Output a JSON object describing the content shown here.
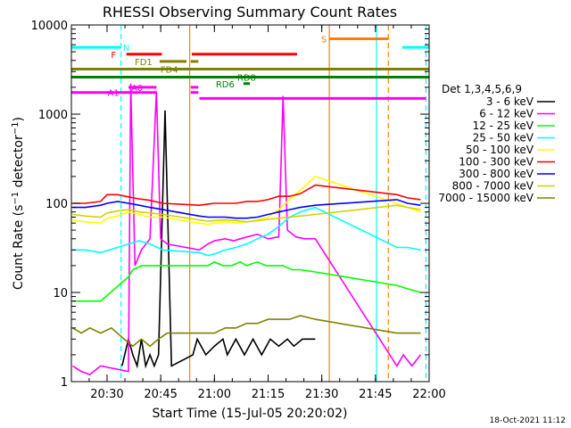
{
  "chart_data": {
    "type": "line",
    "title": "RHESSI Observing Summary Count Rates",
    "xlabel": "Start Time (15-Jul-05 20:20:02)",
    "ylabel": "Count Rate (s⁻¹ detector⁻¹)",
    "ylabel_main": "Count Rate (s",
    "ylabel_mid": " detector",
    "ylabel_end": ")",
    "ylabel_sup": "−1",
    "yscale": "log",
    "xlim": [
      20.3339,
      22.0
    ],
    "ylim": [
      1,
      10000
    ],
    "x_ticks": [
      {
        "x": 20.5,
        "label": "20:30"
      },
      {
        "x": 20.75,
        "label": "20:45"
      },
      {
        "x": 21.0,
        "label": "21:00"
      },
      {
        "x": 21.25,
        "label": "21:15"
      },
      {
        "x": 21.5,
        "label": "21:30"
      },
      {
        "x": 21.75,
        "label": "21:45"
      },
      {
        "x": 22.0,
        "label": "22:00"
      }
    ],
    "y_ticks": [
      {
        "y": 1,
        "label": "1"
      },
      {
        "y": 10,
        "label": "10"
      },
      {
        "y": 100,
        "label": "100"
      },
      {
        "y": 1000,
        "label": "1000"
      },
      {
        "y": 10000,
        "label": "10000"
      }
    ],
    "legend_title": "Det 1,3,4,5,6,9",
    "legend_position": "right",
    "footer_date": "18-Oct-2021 11:12",
    "series": [
      {
        "name": "3 - 6 keV",
        "color": "#000000",
        "points": [
          [
            20.57,
            1.5
          ],
          [
            20.6,
            3
          ],
          [
            20.62,
            2
          ],
          [
            20.64,
            1.5
          ],
          [
            20.66,
            3
          ],
          [
            20.68,
            1.5
          ],
          [
            20.7,
            2
          ],
          [
            20.72,
            1.5
          ],
          [
            20.74,
            2
          ],
          [
            20.77,
            1100
          ],
          [
            20.8,
            1.5
          ],
          [
            20.9,
            2
          ],
          [
            20.92,
            3
          ],
          [
            20.96,
            2
          ],
          [
            21.0,
            2.5
          ],
          [
            21.04,
            3
          ],
          [
            21.06,
            2
          ],
          [
            21.1,
            3
          ],
          [
            21.14,
            2
          ],
          [
            21.18,
            3
          ],
          [
            21.22,
            2
          ],
          [
            21.26,
            3
          ],
          [
            21.3,
            2.5
          ],
          [
            21.34,
            3
          ],
          [
            21.37,
            2.5
          ],
          [
            21.41,
            3
          ],
          [
            21.47,
            3
          ]
        ]
      },
      {
        "name": "6 - 12 keV",
        "color": "#ff00ff",
        "points": [
          [
            20.34,
            1.5
          ],
          [
            20.38,
            1.3
          ],
          [
            20.42,
            1.2
          ],
          [
            20.47,
            1.5
          ],
          [
            20.6,
            1.3
          ],
          [
            20.61,
            2200
          ],
          [
            20.63,
            20
          ],
          [
            20.66,
            30
          ],
          [
            20.7,
            40
          ],
          [
            20.73,
            1800
          ],
          [
            20.75,
            40
          ],
          [
            20.78,
            35
          ],
          [
            20.93,
            30
          ],
          [
            20.97,
            35
          ],
          [
            21.0,
            38
          ],
          [
            21.05,
            40
          ],
          [
            21.09,
            38
          ],
          [
            21.12,
            40
          ],
          [
            21.2,
            45
          ],
          [
            21.25,
            40
          ],
          [
            21.3,
            42
          ],
          [
            21.32,
            1600
          ],
          [
            21.34,
            50
          ],
          [
            21.38,
            42
          ],
          [
            21.42,
            40
          ],
          [
            21.47,
            40
          ],
          [
            21.85,
            1.5
          ],
          [
            21.88,
            2
          ],
          [
            21.92,
            1.5
          ],
          [
            21.96,
            2
          ]
        ]
      },
      {
        "name": "12 - 25 keV",
        "color": "#00ff00",
        "points": [
          [
            20.34,
            8
          ],
          [
            20.4,
            8
          ],
          [
            20.47,
            8
          ],
          [
            20.6,
            15
          ],
          [
            20.62,
            18
          ],
          [
            20.66,
            20
          ],
          [
            20.7,
            20
          ],
          [
            20.74,
            20
          ],
          [
            20.76,
            20
          ],
          [
            20.93,
            20
          ],
          [
            20.97,
            20
          ],
          [
            21.0,
            22
          ],
          [
            21.04,
            20
          ],
          [
            21.08,
            20
          ],
          [
            21.12,
            22
          ],
          [
            21.15,
            20
          ],
          [
            21.2,
            22
          ],
          [
            21.24,
            20
          ],
          [
            21.28,
            20
          ],
          [
            21.32,
            20
          ],
          [
            21.36,
            18
          ],
          [
            21.4,
            18
          ],
          [
            21.47,
            17
          ],
          [
            21.85,
            12
          ],
          [
            21.9,
            11
          ],
          [
            21.96,
            10
          ]
        ]
      },
      {
        "name": "25 - 50 keV",
        "color": "#00ffff",
        "points": [
          [
            20.34,
            30
          ],
          [
            20.4,
            30
          ],
          [
            20.47,
            28
          ],
          [
            20.55,
            32
          ],
          [
            20.6,
            35
          ],
          [
            20.65,
            38
          ],
          [
            20.7,
            35
          ],
          [
            20.76,
            30
          ],
          [
            20.93,
            28
          ],
          [
            20.97,
            26
          ],
          [
            21.0,
            27
          ],
          [
            21.05,
            30
          ],
          [
            21.1,
            32
          ],
          [
            21.15,
            35
          ],
          [
            21.2,
            40
          ],
          [
            21.25,
            45
          ],
          [
            21.3,
            55
          ],
          [
            21.35,
            70
          ],
          [
            21.4,
            80
          ],
          [
            21.47,
            90
          ],
          [
            21.85,
            32
          ],
          [
            21.9,
            32
          ],
          [
            21.96,
            30
          ]
        ]
      },
      {
        "name": "50 - 100 keV",
        "color": "#ffff00",
        "points": [
          [
            20.34,
            65
          ],
          [
            20.4,
            62
          ],
          [
            20.47,
            60
          ],
          [
            20.5,
            68
          ],
          [
            20.55,
            72
          ],
          [
            20.6,
            80
          ],
          [
            20.65,
            75
          ],
          [
            20.7,
            70
          ],
          [
            20.76,
            70
          ],
          [
            20.93,
            60
          ],
          [
            20.97,
            58
          ],
          [
            21.0,
            60
          ],
          [
            21.05,
            62
          ],
          [
            21.1,
            60
          ],
          [
            21.15,
            62
          ],
          [
            21.2,
            65
          ],
          [
            21.25,
            70
          ],
          [
            21.3,
            85
          ],
          [
            21.35,
            110
          ],
          [
            21.4,
            140
          ],
          [
            21.47,
            200
          ],
          [
            21.85,
            100
          ],
          [
            21.9,
            90
          ],
          [
            21.96,
            80
          ]
        ]
      },
      {
        "name": "100 - 300 keV",
        "color": "#ff0000",
        "points": [
          [
            20.34,
            100
          ],
          [
            20.4,
            100
          ],
          [
            20.47,
            105
          ],
          [
            20.5,
            125
          ],
          [
            20.55,
            125
          ],
          [
            20.6,
            118
          ],
          [
            20.65,
            112
          ],
          [
            20.7,
            108
          ],
          [
            20.76,
            100
          ],
          [
            20.93,
            95
          ],
          [
            20.97,
            98
          ],
          [
            21.0,
            100
          ],
          [
            21.05,
            100
          ],
          [
            21.1,
            100
          ],
          [
            21.15,
            105
          ],
          [
            21.2,
            105
          ],
          [
            21.25,
            110
          ],
          [
            21.3,
            120
          ],
          [
            21.35,
            120
          ],
          [
            21.4,
            128
          ],
          [
            21.47,
            160
          ],
          [
            21.85,
            125
          ],
          [
            21.9,
            115
          ],
          [
            21.96,
            110
          ]
        ]
      },
      {
        "name": "300 - 800 keV",
        "color": "#0000ff",
        "points": [
          [
            20.34,
            90
          ],
          [
            20.4,
            90
          ],
          [
            20.47,
            95
          ],
          [
            20.5,
            100
          ],
          [
            20.55,
            105
          ],
          [
            20.6,
            100
          ],
          [
            20.65,
            95
          ],
          [
            20.7,
            90
          ],
          [
            20.76,
            85
          ],
          [
            20.93,
            72
          ],
          [
            20.97,
            70
          ],
          [
            21.0,
            70
          ],
          [
            21.05,
            70
          ],
          [
            21.1,
            68
          ],
          [
            21.15,
            68
          ],
          [
            21.2,
            70
          ],
          [
            21.25,
            75
          ],
          [
            21.3,
            80
          ],
          [
            21.35,
            85
          ],
          [
            21.4,
            90
          ],
          [
            21.47,
            95
          ],
          [
            21.85,
            110
          ],
          [
            21.9,
            100
          ],
          [
            21.96,
            95
          ]
        ]
      },
      {
        "name": "800 - 7000 keV",
        "color": "#d2d200",
        "points": [
          [
            20.34,
            75
          ],
          [
            20.4,
            72
          ],
          [
            20.47,
            70
          ],
          [
            20.5,
            78
          ],
          [
            20.55,
            82
          ],
          [
            20.6,
            85
          ],
          [
            20.65,
            80
          ],
          [
            20.7,
            78
          ],
          [
            20.76,
            75
          ],
          [
            20.93,
            65
          ],
          [
            20.97,
            63
          ],
          [
            21.0,
            64
          ],
          [
            21.05,
            65
          ],
          [
            21.1,
            64
          ],
          [
            21.15,
            62
          ],
          [
            21.2,
            64
          ],
          [
            21.25,
            66
          ],
          [
            21.3,
            68
          ],
          [
            21.35,
            70
          ],
          [
            21.4,
            72
          ],
          [
            21.47,
            75
          ],
          [
            21.85,
            95
          ],
          [
            21.9,
            90
          ],
          [
            21.96,
            85
          ]
        ]
      },
      {
        "name": "7000 - 15000 keV",
        "color": "#808000",
        "points": [
          [
            20.34,
            4
          ],
          [
            20.38,
            3.5
          ],
          [
            20.42,
            4
          ],
          [
            20.47,
            3.5
          ],
          [
            20.52,
            4
          ],
          [
            20.58,
            3
          ],
          [
            20.62,
            2.5
          ],
          [
            20.66,
            3
          ],
          [
            20.7,
            2.5
          ],
          [
            20.74,
            3
          ],
          [
            20.78,
            3.5
          ],
          [
            20.93,
            3.5
          ],
          [
            20.97,
            3.5
          ],
          [
            21.0,
            3.5
          ],
          [
            21.05,
            4
          ],
          [
            21.1,
            4
          ],
          [
            21.15,
            4.5
          ],
          [
            21.2,
            4.5
          ],
          [
            21.25,
            5
          ],
          [
            21.3,
            5
          ],
          [
            21.35,
            5
          ],
          [
            21.4,
            5.5
          ],
          [
            21.47,
            5
          ],
          [
            21.85,
            3.5
          ],
          [
            21.9,
            3.5
          ],
          [
            21.96,
            3.5
          ]
        ]
      }
    ],
    "flag_bars": [
      {
        "label": "N",
        "color": "#00ffff",
        "y": 5600,
        "segments": [
          [
            20.334,
            20.565
          ]
        ],
        "label_x": 20.59
      },
      {
        "label": "N",
        "color": "#00ffff",
        "y": 5600,
        "segments": [
          [
            21.875,
            22.0
          ]
        ],
        "label_x": null
      },
      {
        "label": "S",
        "color": "#ff8000",
        "y": 7000,
        "segments": [
          [
            21.535,
            21.81
          ]
        ],
        "label_x": 21.51
      },
      {
        "label": "F",
        "color": "#ff0000",
        "y": 4700,
        "segments": [
          [
            20.59,
            20.755
          ],
          [
            20.895,
            21.385
          ]
        ],
        "label_x": 20.53
      },
      {
        "label": "FD1",
        "color": "#808000",
        "y": 3900,
        "segments": [
          [
            20.745,
            20.87
          ],
          [
            20.89,
            20.925
          ]
        ],
        "label_x": 20.67
      },
      {
        "label": "FD4",
        "color": "#808000",
        "y": 3200,
        "segments": [
          [
            20.334,
            22.0
          ]
        ],
        "label_x": 20.79
      },
      {
        "label": "RD8",
        "color": "#008000",
        "y": 2600,
        "segments": [
          [
            20.334,
            22.0
          ]
        ],
        "label_x": 21.15
      },
      {
        "label": "RD6",
        "color": "#008000",
        "y": 2200,
        "segments": [
          [
            21.135,
            21.165
          ]
        ],
        "label_x": 21.05
      },
      {
        "label": "A0",
        "color": "#ff00ff",
        "y": 2000,
        "segments": [
          [
            20.6,
            20.73
          ],
          [
            20.89,
            20.925
          ]
        ],
        "label_x": 20.64
      },
      {
        "label": "A1",
        "color": "#ff00ff",
        "y": 1750,
        "segments": [
          [
            20.334,
            20.73
          ],
          [
            20.89,
            20.925
          ]
        ],
        "label_x": 20.53
      },
      {
        "label": "A1",
        "color": "#ff00ff",
        "y": 1500,
        "segments": [
          [
            20.93,
            21.985
          ]
        ],
        "label_x": null
      }
    ],
    "vertical_markers": [
      {
        "x": 20.565,
        "color": "#00ffff",
        "style": "dashed"
      },
      {
        "x": 20.885,
        "color": "#ff8000",
        "style": "solid"
      },
      {
        "x": 21.535,
        "color": "#ff8000",
        "style": "solid"
      },
      {
        "x": 21.81,
        "color": "#ff8000",
        "style": "dashed"
      },
      {
        "x": 21.755,
        "color": "#00ffff",
        "style": "solid"
      },
      {
        "x": 21.985,
        "color": "#00ffff",
        "style": "dashed"
      }
    ]
  }
}
